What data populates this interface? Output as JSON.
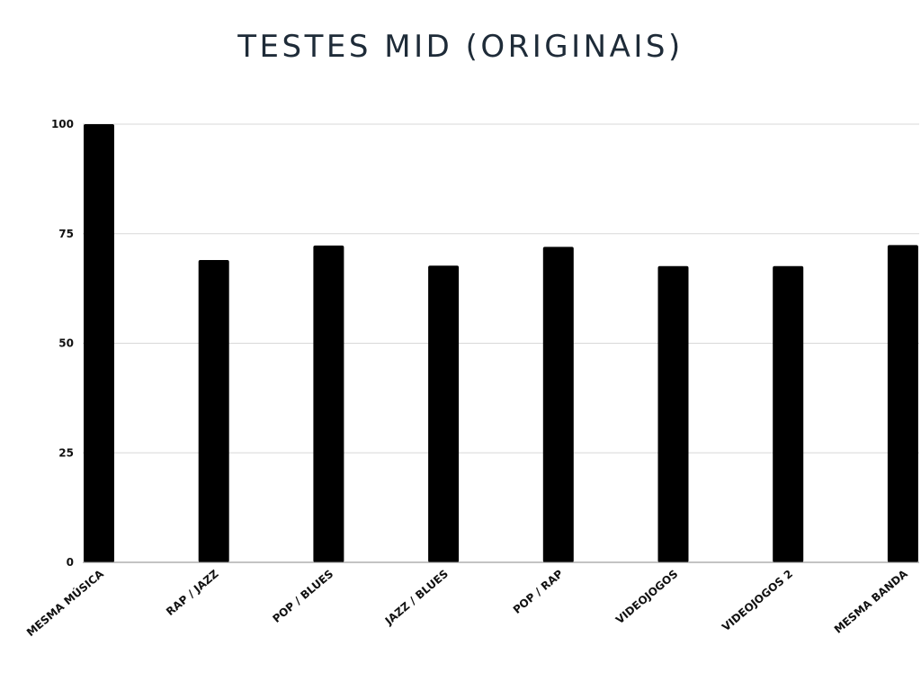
{
  "chart_data": {
    "type": "bar",
    "title": "TESTES MID (ORIGINAIS)",
    "xlabel": "",
    "ylabel": "",
    "categories": [
      "MESMA MÚSICA",
      "RAP / JAZZ",
      "POP / BLUES",
      "JAZZ / BLUES",
      "POP / RAP",
      "VIDEOJOGOS",
      "VIDEOJOGOS 2",
      "MESMA BANDA"
    ],
    "values": [
      100,
      69,
      72.3,
      67.7,
      72,
      67.6,
      67.6,
      72.4
    ],
    "ylim": [
      0,
      100
    ],
    "yticks": [
      "0",
      "25",
      "50",
      "75",
      "100"
    ],
    "grid": true,
    "legend": "none",
    "colors": {
      "bar": "#000000",
      "title": "#1e2b38"
    }
  }
}
